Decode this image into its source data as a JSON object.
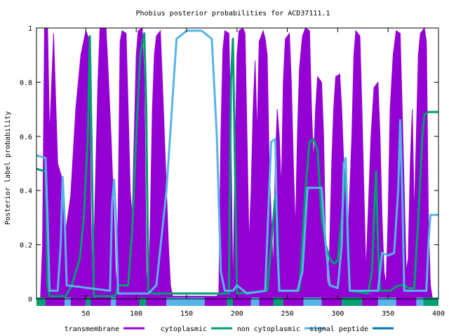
{
  "chart_data": {
    "type": "area",
    "title": "Phobius posterior probabilities for ACD37111.1",
    "xlabel": "",
    "ylabel": "Posterior label probability",
    "xlim": [
      1,
      400
    ],
    "ylim": [
      0,
      1
    ],
    "x_ticks": [
      50,
      100,
      150,
      200,
      250,
      300,
      350,
      400
    ],
    "y_ticks": [
      0,
      0.2,
      0.4,
      0.6,
      0.8,
      1
    ],
    "y_tick_labels": [
      "0",
      "0.2",
      "0.4",
      "0.6",
      "0.8",
      "1"
    ],
    "grid": false,
    "legend_position": "bottom",
    "series": [
      {
        "name": "transmembrane",
        "color": "#9400d3",
        "style": "filled",
        "points": [
          [
            1,
            0
          ],
          [
            5,
            0
          ],
          [
            7,
            0.2
          ],
          [
            9,
            1
          ],
          [
            12,
            1
          ],
          [
            14,
            0.6
          ],
          [
            18,
            0.98
          ],
          [
            22,
            0.5
          ],
          [
            26,
            0.45
          ],
          [
            30,
            0.25
          ],
          [
            35,
            0.38
          ],
          [
            40,
            0.7
          ],
          [
            45,
            0.9
          ],
          [
            50,
            0.99
          ],
          [
            53,
            0.96
          ],
          [
            55,
            0.3
          ],
          [
            57,
            0.02
          ],
          [
            60,
            0.5
          ],
          [
            62,
            0.8
          ],
          [
            64,
            1
          ],
          [
            70,
            1
          ],
          [
            72,
            0.85
          ],
          [
            75,
            0.6
          ],
          [
            78,
            0.3
          ],
          [
            80,
            0.02
          ],
          [
            82,
            0.3
          ],
          [
            84,
            0.95
          ],
          [
            86,
            0.99
          ],
          [
            90,
            0.98
          ],
          [
            92,
            0.7
          ],
          [
            94,
            0.4
          ],
          [
            96,
            0.3
          ],
          [
            98,
            0.6
          ],
          [
            100,
            0.9
          ],
          [
            102,
            0.99
          ],
          [
            106,
            1
          ],
          [
            108,
            0.8
          ],
          [
            110,
            0.1
          ],
          [
            112,
            0.02
          ],
          [
            114,
            0.3
          ],
          [
            116,
            0.7
          ],
          [
            118,
            0.9
          ],
          [
            120,
            0.97
          ],
          [
            124,
            0.99
          ],
          [
            126,
            0.8
          ],
          [
            128,
            0.6
          ],
          [
            130,
            0.4
          ],
          [
            132,
            0.2
          ],
          [
            134,
            0.05
          ],
          [
            136,
            0.01
          ],
          [
            180,
            0.01
          ],
          [
            182,
            0.02
          ],
          [
            184,
            0.6
          ],
          [
            186,
            0.92
          ],
          [
            188,
            0.99
          ],
          [
            192,
            0.98
          ],
          [
            194,
            0.6
          ],
          [
            196,
            0.02
          ],
          [
            198,
            0.5
          ],
          [
            200,
            0.9
          ],
          [
            202,
            0.99
          ],
          [
            206,
            1
          ],
          [
            208,
            0.98
          ],
          [
            210,
            0.6
          ],
          [
            212,
            0.2
          ],
          [
            214,
            0.4
          ],
          [
            216,
            0.7
          ],
          [
            218,
            0.88
          ],
          [
            220,
            0.6
          ],
          [
            222,
            0.95
          ],
          [
            226,
            0.99
          ],
          [
            228,
            0.96
          ],
          [
            230,
            0.9
          ],
          [
            232,
            0.5
          ],
          [
            234,
            0.3
          ],
          [
            236,
            0.1
          ],
          [
            238,
            0.5
          ],
          [
            240,
            0.7
          ],
          [
            242,
            0.6
          ],
          [
            244,
            0.4
          ],
          [
            246,
            0.8
          ],
          [
            248,
            0.96
          ],
          [
            252,
            0.98
          ],
          [
            254,
            0.8
          ],
          [
            256,
            0.5
          ],
          [
            258,
            0.25
          ],
          [
            260,
            0.6
          ],
          [
            262,
            0.85
          ],
          [
            265,
            0.97
          ],
          [
            268,
            1
          ],
          [
            272,
            0.99
          ],
          [
            274,
            0.7
          ],
          [
            276,
            0.5
          ],
          [
            278,
            0.7
          ],
          [
            280,
            0.82
          ],
          [
            284,
            0.8
          ],
          [
            286,
            0.6
          ],
          [
            288,
            0.2
          ],
          [
            290,
            0.02
          ],
          [
            292,
            0.2
          ],
          [
            294,
            0.5
          ],
          [
            296,
            0.7
          ],
          [
            298,
            0.82
          ],
          [
            302,
            0.83
          ],
          [
            304,
            0.7
          ],
          [
            306,
            0.5
          ],
          [
            308,
            0.4
          ],
          [
            310,
            0.2
          ],
          [
            312,
            0.4
          ],
          [
            314,
            0.6
          ],
          [
            316,
            0.9
          ],
          [
            318,
            0.99
          ],
          [
            322,
            0.97
          ],
          [
            324,
            0.7
          ],
          [
            326,
            0.4
          ],
          [
            328,
            0.1
          ],
          [
            330,
            0.3
          ],
          [
            333,
            0.6
          ],
          [
            336,
            0.78
          ],
          [
            340,
            0.8
          ],
          [
            342,
            0.6
          ],
          [
            344,
            0.3
          ],
          [
            346,
            0.1
          ],
          [
            348,
            0.05
          ],
          [
            350,
            0.3
          ],
          [
            352,
            0.7
          ],
          [
            355,
            0.9
          ],
          [
            358,
            0.99
          ],
          [
            362,
            0.98
          ],
          [
            364,
            0.7
          ],
          [
            366,
            0.4
          ],
          [
            368,
            0.1
          ],
          [
            370,
            0.15
          ],
          [
            372,
            0.5
          ],
          [
            374,
            0.7
          ],
          [
            376,
            0.3
          ],
          [
            378,
            0.6
          ],
          [
            380,
            0.9
          ],
          [
            382,
            0.98
          ],
          [
            386,
            1
          ],
          [
            388,
            0.95
          ],
          [
            390,
            0.3
          ],
          [
            392,
            0.05
          ],
          [
            394,
            0
          ],
          [
            400,
            0
          ]
        ]
      },
      {
        "name": "cytoplasmic",
        "color": "#009e73",
        "style": "line",
        "points": [
          [
            1,
            0.48
          ],
          [
            10,
            0.47
          ],
          [
            11,
            0.3
          ],
          [
            12,
            0.05
          ],
          [
            14,
            0.01
          ],
          [
            30,
            0.01
          ],
          [
            36,
            0.05
          ],
          [
            44,
            0.15
          ],
          [
            48,
            0.3
          ],
          [
            52,
            0.6
          ],
          [
            54,
            0.97
          ],
          [
            56,
            0.5
          ],
          [
            58,
            0.01
          ],
          [
            78,
            0.01
          ],
          [
            80,
            0.02
          ],
          [
            82,
            0.05
          ],
          [
            92,
            0.05
          ],
          [
            96,
            0.25
          ],
          [
            100,
            0.6
          ],
          [
            104,
            0.9
          ],
          [
            108,
            0.98
          ],
          [
            110,
            0.7
          ],
          [
            112,
            0.03
          ],
          [
            116,
            0.02
          ],
          [
            130,
            0.02
          ],
          [
            150,
            0.02
          ],
          [
            180,
            0.02
          ],
          [
            192,
            0.02
          ],
          [
            194,
            0.8
          ],
          [
            196,
            0.96
          ],
          [
            198,
            0.5
          ],
          [
            200,
            0.02
          ],
          [
            230,
            0.03
          ],
          [
            234,
            0.2
          ],
          [
            238,
            0.38
          ],
          [
            240,
            0.3
          ],
          [
            242,
            0.03
          ],
          [
            262,
            0.03
          ],
          [
            268,
            0.4
          ],
          [
            272,
            0.58
          ],
          [
            276,
            0.59
          ],
          [
            280,
            0.55
          ],
          [
            284,
            0.3
          ],
          [
            288,
            0.2
          ],
          [
            292,
            0.15
          ],
          [
            296,
            0.13
          ],
          [
            300,
            0.14
          ],
          [
            304,
            0.3
          ],
          [
            308,
            0.48
          ],
          [
            310,
            0.25
          ],
          [
            312,
            0.03
          ],
          [
            330,
            0.02
          ],
          [
            334,
            0.1
          ],
          [
            336,
            0.3
          ],
          [
            338,
            0.47
          ],
          [
            340,
            0.2
          ],
          [
            342,
            0.03
          ],
          [
            352,
            0.03
          ],
          [
            360,
            0.05
          ],
          [
            366,
            0.05
          ],
          [
            370,
            0.04
          ],
          [
            376,
            0.04
          ],
          [
            380,
            0.3
          ],
          [
            384,
            0.6
          ],
          [
            386,
            0.68
          ],
          [
            390,
            0.69
          ],
          [
            400,
            0.69
          ]
        ]
      },
      {
        "name": "non cytoplasmic",
        "color": "#56b4e9",
        "style": "line",
        "points": [
          [
            1,
            0.53
          ],
          [
            10,
            0.52
          ],
          [
            12,
            0.3
          ],
          [
            14,
            0.03
          ],
          [
            22,
            0.03
          ],
          [
            25,
            0.2
          ],
          [
            27,
            0.45
          ],
          [
            29,
            0.3
          ],
          [
            31,
            0.05
          ],
          [
            74,
            0.03
          ],
          [
            76,
            0.35
          ],
          [
            78,
            0.44
          ],
          [
            80,
            0.3
          ],
          [
            82,
            0.02
          ],
          [
            112,
            0.02
          ],
          [
            120,
            0.05
          ],
          [
            130,
            0.4
          ],
          [
            140,
            0.96
          ],
          [
            150,
            0.99
          ],
          [
            165,
            0.99
          ],
          [
            175,
            0.96
          ],
          [
            180,
            0.6
          ],
          [
            184,
            0.1
          ],
          [
            188,
            0.03
          ],
          [
            196,
            0.03
          ],
          [
            200,
            0.05
          ],
          [
            210,
            0.02
          ],
          [
            228,
            0.03
          ],
          [
            232,
            0.4
          ],
          [
            234,
            0.58
          ],
          [
            238,
            0.59
          ],
          [
            240,
            0.2
          ],
          [
            242,
            0.03
          ],
          [
            260,
            0.03
          ],
          [
            265,
            0.1
          ],
          [
            270,
            0.41
          ],
          [
            284,
            0.41
          ],
          [
            288,
            0.2
          ],
          [
            292,
            0.05
          ],
          [
            300,
            0.04
          ],
          [
            304,
            0.2
          ],
          [
            306,
            0.5
          ],
          [
            308,
            0.52
          ],
          [
            310,
            0.2
          ],
          [
            312,
            0.03
          ],
          [
            340,
            0.03
          ],
          [
            344,
            0.17
          ],
          [
            350,
            0.16
          ],
          [
            356,
            0.17
          ],
          [
            360,
            0.4
          ],
          [
            362,
            0.66
          ],
          [
            364,
            0.4
          ],
          [
            366,
            0.03
          ],
          [
            388,
            0.03
          ],
          [
            390,
            0.2
          ],
          [
            392,
            0.31
          ],
          [
            400,
            0.31
          ]
        ]
      },
      {
        "name": "signal peptide",
        "color": "#0072b2",
        "style": "line",
        "points": [
          [
            1,
            0
          ],
          [
            400,
            0
          ]
        ]
      }
    ],
    "topology_bar": [
      {
        "from": 1,
        "to": 10,
        "label": "cytoplasmic"
      },
      {
        "from": 10,
        "to": 29,
        "label": "transmembrane"
      },
      {
        "from": 29,
        "to": 35,
        "label": "non cytoplasmic"
      },
      {
        "from": 35,
        "to": 50,
        "label": "transmembrane"
      },
      {
        "from": 50,
        "to": 55,
        "label": "cytoplasmic"
      },
      {
        "from": 55,
        "to": 75,
        "label": "transmembrane"
      },
      {
        "from": 75,
        "to": 80,
        "label": "non cytoplasmic"
      },
      {
        "from": 80,
        "to": 103,
        "label": "transmembrane"
      },
      {
        "from": 103,
        "to": 110,
        "label": "cytoplasmic"
      },
      {
        "from": 110,
        "to": 130,
        "label": "transmembrane"
      },
      {
        "from": 130,
        "to": 168,
        "label": "non cytoplasmic"
      },
      {
        "from": 168,
        "to": 190,
        "label": "transmembrane"
      },
      {
        "from": 190,
        "to": 196,
        "label": "cytoplasmic"
      },
      {
        "from": 196,
        "to": 214,
        "label": "transmembrane"
      },
      {
        "from": 214,
        "to": 222,
        "label": "non cytoplasmic"
      },
      {
        "from": 222,
        "to": 236,
        "label": "transmembrane"
      },
      {
        "from": 236,
        "to": 246,
        "label": "cytoplasmic"
      },
      {
        "from": 246,
        "to": 266,
        "label": "transmembrane"
      },
      {
        "from": 266,
        "to": 284,
        "label": "non cytoplasmic"
      },
      {
        "from": 284,
        "to": 304,
        "label": "transmembrane"
      },
      {
        "from": 304,
        "to": 324,
        "label": "cytoplasmic"
      },
      {
        "from": 324,
        "to": 340,
        "label": "transmembrane"
      },
      {
        "from": 340,
        "to": 358,
        "label": "non cytoplasmic"
      },
      {
        "from": 358,
        "to": 378,
        "label": "transmembrane"
      },
      {
        "from": 378,
        "to": 385,
        "label": "non cytoplasmic"
      },
      {
        "from": 385,
        "to": 400,
        "label": "cytoplasmic"
      }
    ]
  }
}
